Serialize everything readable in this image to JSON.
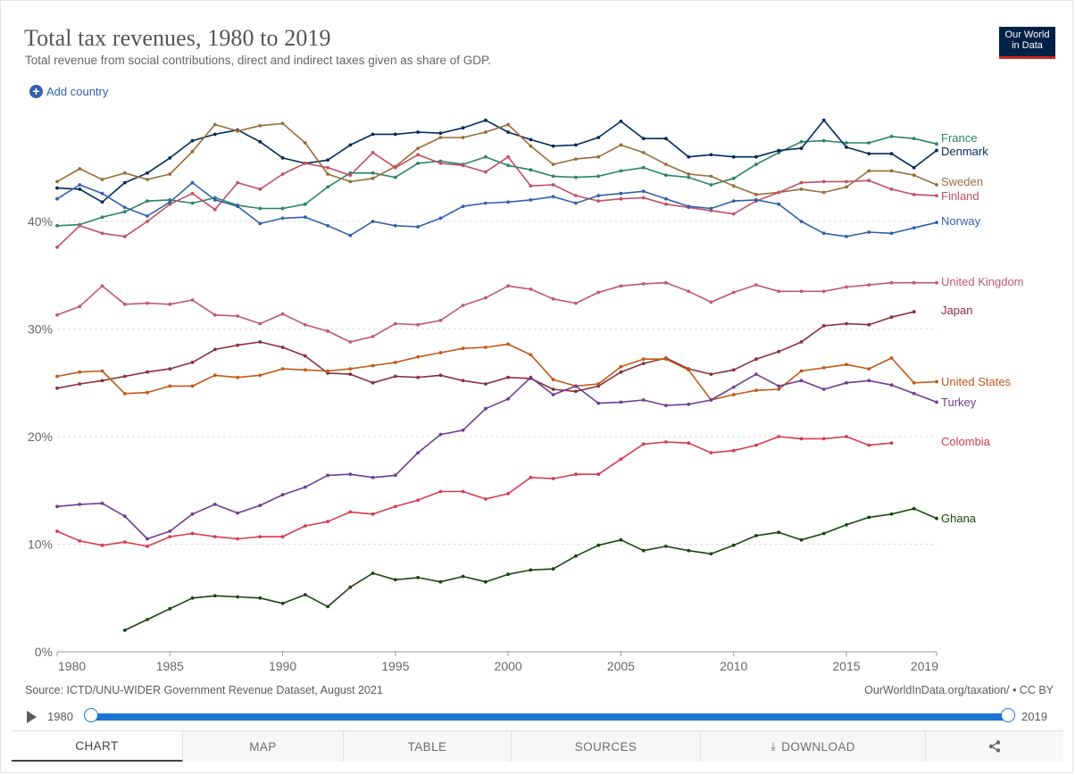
{
  "header": {
    "title": "Total tax revenues, 1980 to 2019",
    "subtitle": "Total revenue from social contributions, direct and indirect taxes given as share of GDP.",
    "logo_line1": "Our World",
    "logo_line2": "in Data",
    "logo_bg": "#002147",
    "logo_bar": "#ce261e"
  },
  "controls": {
    "add_country_label": "Add country",
    "add_icon": "plus-circle-icon"
  },
  "footer": {
    "source": "Source: ICTD/UNU-WIDER Government Revenue Dataset, August 2021",
    "url": "OurWorldInData.org/taxation/ • CC BY"
  },
  "timeline": {
    "start_label": "1980",
    "end_label": "2019",
    "start_value": 1980,
    "end_value": 2019,
    "accent": "#1b75d3"
  },
  "tabs": [
    {
      "label": "CHART",
      "active": true
    },
    {
      "label": "MAP",
      "active": false
    },
    {
      "label": "TABLE",
      "active": false
    },
    {
      "label": "SOURCES",
      "active": false
    },
    {
      "label": "DOWNLOAD",
      "active": false,
      "icon": "download-icon"
    },
    {
      "label": "",
      "active": false,
      "icon": "share-icon"
    }
  ],
  "chart_data": {
    "type": "line",
    "title": "Total tax revenues, 1980 to 2019",
    "xlabel": "",
    "ylabel": "",
    "xlim": [
      1980,
      2019
    ],
    "ylim": [
      0,
      50
    ],
    "x_ticks": [
      1980,
      1985,
      1990,
      1995,
      2000,
      2005,
      2010,
      2015,
      2019
    ],
    "y_ticks": [
      0,
      10,
      20,
      30,
      40
    ],
    "y_tick_labels": [
      "0%",
      "10%",
      "20%",
      "30%",
      "40%"
    ],
    "grid": "horizontal dashed",
    "legend": "right end labels",
    "series": [
      {
        "name": "France",
        "color": "#2c8465",
        "start": 1980,
        "values": [
          39.6,
          39.7,
          40.4,
          40.9,
          41.9,
          42.0,
          41.7,
          42.2,
          41.5,
          41.2,
          41.2,
          41.6,
          43.2,
          44.5,
          44.5,
          44.1,
          45.4,
          45.6,
          45.3,
          46.0,
          45.2,
          44.8,
          44.2,
          44.1,
          44.2,
          44.7,
          45.0,
          44.3,
          44.1,
          43.4,
          44.0,
          45.3,
          46.4,
          47.4,
          47.5,
          47.3,
          47.3,
          47.9,
          47.7,
          47.2
        ]
      },
      {
        "name": "Denmark",
        "color": "#00295b",
        "start": 1980,
        "values": [
          43.1,
          43.0,
          41.8,
          43.6,
          44.5,
          45.9,
          47.5,
          48.1,
          48.5,
          47.4,
          45.9,
          45.4,
          45.7,
          47.1,
          48.1,
          48.1,
          48.3,
          48.2,
          48.7,
          49.4,
          48.3,
          47.6,
          47.0,
          47.1,
          47.8,
          49.3,
          47.7,
          47.7,
          46.0,
          46.2,
          46.0,
          46.0,
          46.6,
          46.8,
          49.4,
          46.9,
          46.3,
          46.3,
          45.0,
          46.6
        ]
      },
      {
        "name": "Sweden",
        "color": "#996d39",
        "start": 1980,
        "values": [
          43.7,
          44.9,
          43.9,
          44.5,
          43.9,
          44.4,
          46.5,
          49.0,
          48.4,
          48.9,
          49.1,
          47.3,
          44.4,
          43.7,
          44.0,
          45.1,
          46.8,
          47.8,
          47.8,
          48.3,
          49.0,
          47.0,
          45.3,
          45.8,
          46.0,
          47.1,
          46.4,
          45.3,
          44.4,
          44.2,
          43.3,
          42.5,
          42.7,
          43.0,
          42.7,
          43.2,
          44.7,
          44.7,
          44.3,
          43.4
        ]
      },
      {
        "name": "Finland",
        "color": "#c15065",
        "start": 1980,
        "values": [
          37.6,
          39.6,
          38.9,
          38.6,
          40.0,
          41.6,
          42.6,
          41.1,
          43.6,
          43.0,
          44.4,
          45.4,
          45.0,
          44.3,
          46.4,
          45.0,
          46.2,
          45.4,
          45.2,
          44.6,
          46.0,
          43.3,
          43.4,
          42.4,
          41.9,
          42.1,
          42.2,
          41.6,
          41.3,
          41.0,
          40.7,
          41.9,
          42.7,
          43.6,
          43.7,
          43.7,
          43.8,
          43.0,
          42.5,
          42.4
        ]
      },
      {
        "name": "Norway",
        "color": "#3360a9",
        "start": 1980,
        "values": [
          42.1,
          43.4,
          42.6,
          41.3,
          40.5,
          41.8,
          43.6,
          42.0,
          41.4,
          39.8,
          40.3,
          40.4,
          39.6,
          38.7,
          40.0,
          39.6,
          39.5,
          40.3,
          41.4,
          41.7,
          41.8,
          42.0,
          42.3,
          41.7,
          42.4,
          42.6,
          42.8,
          42.1,
          41.4,
          41.2,
          41.9,
          42.0,
          41.6,
          40.0,
          38.9,
          38.6,
          39.0,
          38.9,
          39.4,
          39.9
        ]
      },
      {
        "name": "United Kingdom",
        "color": "#c05778",
        "start": 1980,
        "values": [
          31.3,
          32.1,
          34.0,
          32.3,
          32.4,
          32.3,
          32.7,
          31.3,
          31.2,
          30.5,
          31.4,
          30.4,
          29.8,
          28.8,
          29.3,
          30.5,
          30.4,
          30.8,
          32.2,
          32.9,
          34.0,
          33.7,
          32.8,
          32.4,
          33.4,
          34.0,
          34.2,
          34.3,
          33.5,
          32.5,
          33.4,
          34.1,
          33.5,
          33.5,
          33.5,
          33.9,
          34.1,
          34.3,
          34.3,
          34.3
        ]
      },
      {
        "name": "Japan",
        "color": "#883039",
        "start": 1980,
        "values": [
          24.5,
          24.9,
          25.2,
          25.6,
          26.0,
          26.3,
          26.9,
          28.1,
          28.5,
          28.8,
          28.3,
          27.5,
          25.9,
          25.8,
          25.0,
          25.6,
          25.5,
          25.7,
          25.2,
          24.9,
          25.5,
          25.4,
          24.4,
          24.2,
          24.7,
          26.0,
          26.8,
          27.3,
          26.3,
          25.8,
          26.2,
          27.2,
          27.9,
          28.8,
          30.3,
          30.5,
          30.4,
          31.1,
          31.6
        ]
      },
      {
        "name": "United States",
        "color": "#c05917",
        "start": 1980,
        "values": [
          25.6,
          26.0,
          26.1,
          24.0,
          24.1,
          24.7,
          24.7,
          25.7,
          25.5,
          25.7,
          26.3,
          26.2,
          26.1,
          26.3,
          26.6,
          26.9,
          27.4,
          27.8,
          28.2,
          28.3,
          28.6,
          27.6,
          25.3,
          24.7,
          24.9,
          26.5,
          27.2,
          27.2,
          26.2,
          23.4,
          23.9,
          24.3,
          24.4,
          26.1,
          26.4,
          26.7,
          26.3,
          27.3,
          25.0,
          25.1
        ]
      },
      {
        "name": "Turkey",
        "color": "#6d3e91",
        "start": 1980,
        "values": [
          13.5,
          13.7,
          13.8,
          12.6,
          10.5,
          11.2,
          12.8,
          13.7,
          12.9,
          13.6,
          14.6,
          15.3,
          16.4,
          16.5,
          16.2,
          16.4,
          18.5,
          20.2,
          20.6,
          22.6,
          23.5,
          25.5,
          23.9,
          24.7,
          23.1,
          23.2,
          23.4,
          22.9,
          23.0,
          23.4,
          24.6,
          25.8,
          24.7,
          25.2,
          24.4,
          25.0,
          25.2,
          24.8,
          24.0,
          23.2
        ]
      },
      {
        "name": "Colombia",
        "color": "#d73c50",
        "start": 1980,
        "values": [
          11.2,
          10.3,
          9.9,
          10.2,
          9.8,
          10.7,
          11.0,
          10.7,
          10.5,
          10.7,
          10.7,
          11.7,
          12.1,
          13.0,
          12.8,
          13.5,
          14.1,
          14.9,
          14.9,
          14.2,
          14.7,
          16.2,
          16.1,
          16.5,
          16.5,
          17.9,
          19.3,
          19.5,
          19.4,
          18.5,
          18.7,
          19.2,
          20.0,
          19.8,
          19.8,
          20.0,
          19.2,
          19.4
        ]
      },
      {
        "name": "Ghana",
        "color": "#18470f",
        "start": 1983,
        "values": [
          2.0,
          3.0,
          4.0,
          5.0,
          5.2,
          5.1,
          5.0,
          4.5,
          5.3,
          4.2,
          6.0,
          7.3,
          6.7,
          6.9,
          6.5,
          7.0,
          6.5,
          7.2,
          7.6,
          7.7,
          8.9,
          9.9,
          10.4,
          9.4,
          9.8,
          9.4,
          9.1,
          9.9,
          10.8,
          11.1,
          10.4,
          11.0,
          11.8,
          12.5,
          12.8,
          13.3,
          12.4
        ]
      }
    ]
  }
}
